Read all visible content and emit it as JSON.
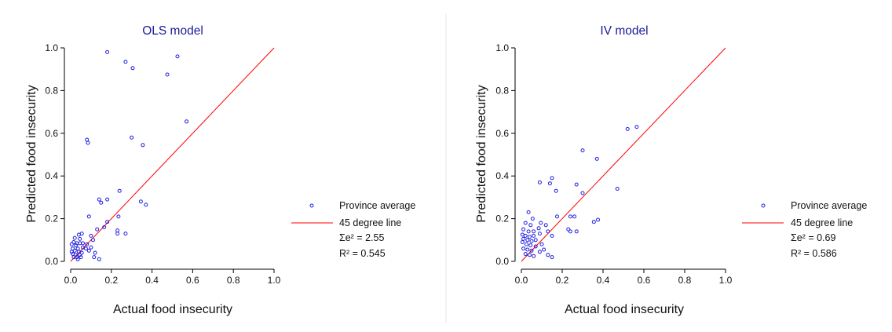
{
  "charts": [
    {
      "title": "OLS model",
      "xlabel": "Actual food insecurity",
      "ylabel": "Predicted food insecurity",
      "legend": {
        "marker_label": "Province average",
        "line_label": "45 degree line",
        "sse_label": "Σe² = 2.55",
        "r2_label": "R² = 0.545"
      }
    },
    {
      "title": "IV model",
      "xlabel": "Actual food insecurity",
      "ylabel": "Predicted food insecurity",
      "legend": {
        "marker_label": "Province average",
        "line_label": "45 degree line",
        "sse_label": "Σe² = 0.69",
        "r2_label": "R² = 0.586"
      }
    }
  ],
  "colors": {
    "points": "#1f1fe0",
    "line": "#ff0000",
    "axis": "#000000",
    "divider": "#e6e6e6"
  },
  "chart_data": [
    {
      "type": "scatter",
      "title": "OLS model",
      "xlabel": "Actual food insecurity",
      "ylabel": "Predicted food insecurity",
      "xlim": [
        0,
        1.0
      ],
      "ylim": [
        0,
        1.0
      ],
      "xticks": [
        "0.0",
        "0.2",
        "0.4",
        "0.6",
        "0.8",
        "1.0"
      ],
      "yticks": [
        "0.0",
        "0.2",
        "0.4",
        "0.6",
        "0.8",
        "1.0"
      ],
      "legend_position": "right",
      "series": [
        {
          "name": "Province average",
          "points": [
            [
              0.18,
              0.98
            ],
            [
              0.27,
              0.935
            ],
            [
              0.305,
              0.905
            ],
            [
              0.525,
              0.96
            ],
            [
              0.475,
              0.875
            ],
            [
              0.57,
              0.655
            ],
            [
              0.08,
              0.57
            ],
            [
              0.085,
              0.555
            ],
            [
              0.3,
              0.58
            ],
            [
              0.355,
              0.545
            ],
            [
              0.24,
              0.33
            ],
            [
              0.14,
              0.29
            ],
            [
              0.15,
              0.275
            ],
            [
              0.18,
              0.29
            ],
            [
              0.345,
              0.28
            ],
            [
              0.37,
              0.265
            ],
            [
              0.09,
              0.21
            ],
            [
              0.235,
              0.21
            ],
            [
              0.18,
              0.185
            ],
            [
              0.165,
              0.16
            ],
            [
              0.13,
              0.15
            ],
            [
              0.23,
              0.145
            ],
            [
              0.23,
              0.13
            ],
            [
              0.27,
              0.13
            ],
            [
              0.055,
              0.13
            ],
            [
              0.04,
              0.125
            ],
            [
              0.02,
              0.11
            ],
            [
              0.045,
              0.105
            ],
            [
              0.1,
              0.12
            ],
            [
              0.11,
              0.1
            ],
            [
              0.015,
              0.09
            ],
            [
              0.03,
              0.085
            ],
            [
              0.005,
              0.08
            ],
            [
              0.025,
              0.075
            ],
            [
              0.045,
              0.085
            ],
            [
              0.06,
              0.085
            ],
            [
              0.08,
              0.08
            ],
            [
              0.01,
              0.06
            ],
            [
              0.035,
              0.06
            ],
            [
              0.06,
              0.065
            ],
            [
              0.075,
              0.06
            ],
            [
              0.1,
              0.065
            ],
            [
              0.005,
              0.045
            ],
            [
              0.02,
              0.05
            ],
            [
              0.04,
              0.045
            ],
            [
              0.055,
              0.04
            ],
            [
              0.09,
              0.05
            ],
            [
              0.12,
              0.04
            ],
            [
              0.01,
              0.035
            ],
            [
              0.025,
              0.03
            ],
            [
              0.045,
              0.03
            ],
            [
              0.015,
              0.02
            ],
            [
              0.03,
              0.02
            ],
            [
              0.05,
              0.02
            ],
            [
              0.035,
              0.01
            ],
            [
              0.115,
              0.02
            ],
            [
              0.14,
              0.01
            ]
          ]
        },
        {
          "name": "45 degree line",
          "line": [
            [
              0,
              0
            ],
            [
              1,
              1
            ]
          ]
        }
      ]
    },
    {
      "type": "scatter",
      "title": "IV model",
      "xlabel": "Actual food insecurity",
      "ylabel": "Predicted food insecurity",
      "xlim": [
        0,
        1.0
      ],
      "ylim": [
        0,
        1.0
      ],
      "xticks": [
        "0.0",
        "0.2",
        "0.4",
        "0.6",
        "0.8",
        "1.0"
      ],
      "yticks": [
        "0.0",
        "0.2",
        "0.4",
        "0.6",
        "0.8",
        "1.0"
      ],
      "legend_position": "right",
      "series": [
        {
          "name": "Province average",
          "points": [
            [
              0.52,
              0.62
            ],
            [
              0.565,
              0.63
            ],
            [
              0.3,
              0.52
            ],
            [
              0.37,
              0.48
            ],
            [
              0.15,
              0.39
            ],
            [
              0.09,
              0.37
            ],
            [
              0.14,
              0.365
            ],
            [
              0.27,
              0.36
            ],
            [
              0.47,
              0.34
            ],
            [
              0.17,
              0.33
            ],
            [
              0.3,
              0.32
            ],
            [
              0.035,
              0.23
            ],
            [
              0.24,
              0.21
            ],
            [
              0.26,
              0.21
            ],
            [
              0.055,
              0.2
            ],
            [
              0.095,
              0.18
            ],
            [
              0.12,
              0.17
            ],
            [
              0.175,
              0.21
            ],
            [
              0.355,
              0.185
            ],
            [
              0.375,
              0.195
            ],
            [
              0.02,
              0.18
            ],
            [
              0.045,
              0.17
            ],
            [
              0.085,
              0.155
            ],
            [
              0.23,
              0.15
            ],
            [
              0.24,
              0.14
            ],
            [
              0.27,
              0.14
            ],
            [
              0.01,
              0.15
            ],
            [
              0.035,
              0.14
            ],
            [
              0.06,
              0.14
            ],
            [
              0.09,
              0.13
            ],
            [
              0.13,
              0.14
            ],
            [
              0.15,
              0.12
            ],
            [
              0.005,
              0.125
            ],
            [
              0.02,
              0.12
            ],
            [
              0.04,
              0.115
            ],
            [
              0.06,
              0.12
            ],
            [
              0.01,
              0.105
            ],
            [
              0.03,
              0.1
            ],
            [
              0.05,
              0.095
            ],
            [
              0.07,
              0.1
            ],
            [
              0.005,
              0.09
            ],
            [
              0.025,
              0.08
            ],
            [
              0.045,
              0.075
            ],
            [
              0.07,
              0.07
            ],
            [
              0.1,
              0.08
            ],
            [
              0.11,
              0.055
            ],
            [
              0.01,
              0.06
            ],
            [
              0.03,
              0.055
            ],
            [
              0.05,
              0.05
            ],
            [
              0.09,
              0.045
            ],
            [
              0.13,
              0.03
            ],
            [
              0.15,
              0.02
            ],
            [
              0.02,
              0.035
            ],
            [
              0.04,
              0.03
            ],
            [
              0.06,
              0.025
            ]
          ]
        },
        {
          "name": "45 degree line",
          "line": [
            [
              0,
              0
            ],
            [
              1,
              1
            ]
          ]
        }
      ]
    }
  ]
}
